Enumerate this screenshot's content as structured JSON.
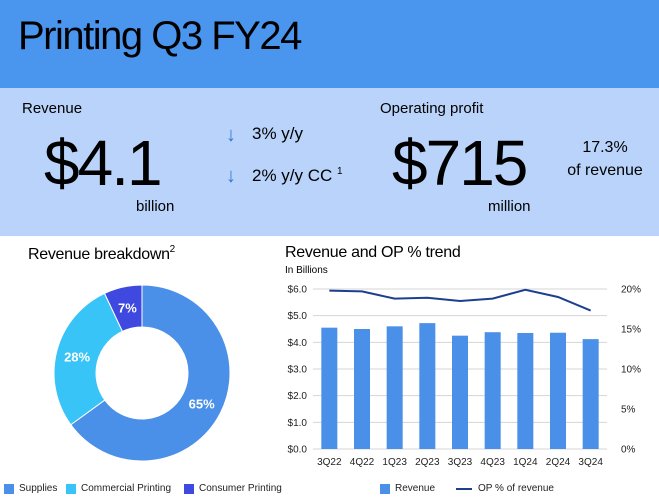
{
  "header": {
    "title": "Printing Q3 FY24"
  },
  "revenue": {
    "label": "Revenue",
    "value": "$4.1",
    "unit": "billion",
    "change1": "3% y/y",
    "change2": "2%  y/y CC",
    "change2_footnote": "1"
  },
  "op_profit": {
    "label": "Operating profit",
    "value": "$715",
    "unit": "million",
    "pct": "17.3%",
    "pct_label": "of revenue"
  },
  "colors": {
    "supplies": "#4a8fe8",
    "commercial": "#38c4f7",
    "consumer": "#3f49e0",
    "line": "#1d3f8f",
    "arrow": "#2f79d6"
  },
  "icons": {
    "down_arrow": "down-arrow-icon"
  },
  "chart_data": [
    {
      "type": "pie",
      "title": "Revenue breakdown",
      "title_footnote": "2",
      "categories": [
        "Supplies",
        "Commercial Printing",
        "Consumer Printing"
      ],
      "values": [
        65,
        28,
        7
      ],
      "labels": [
        "65%",
        "28%",
        "7%"
      ],
      "donut": true
    },
    {
      "type": "bar",
      "title": "Revenue and OP % trend",
      "subtitle": "In Billions",
      "categories": [
        "3Q22",
        "4Q22",
        "1Q23",
        "2Q23",
        "3Q23",
        "4Q23",
        "1Q24",
        "2Q24",
        "3Q24"
      ],
      "series": [
        {
          "name": "Revenue",
          "type": "bar",
          "axis": "left",
          "values": [
            4.55,
            4.5,
            4.6,
            4.72,
            4.25,
            4.38,
            4.35,
            4.36,
            4.12
          ]
        },
        {
          "name": "OP % of revenue",
          "type": "line",
          "axis": "right",
          "values": [
            19.8,
            19.7,
            18.8,
            18.9,
            18.5,
            18.8,
            19.9,
            19.0,
            17.3
          ]
        }
      ],
      "yticks_left": [
        "$0.0",
        "$1.0",
        "$2.0",
        "$3.0",
        "$4.0",
        "$5.0",
        "$6.0"
      ],
      "yticks_right": [
        "0%",
        "5%",
        "10%",
        "15%",
        "20%"
      ],
      "ylim_left": [
        0,
        6
      ],
      "ylim_right": [
        0,
        20
      ],
      "grid": true
    }
  ]
}
